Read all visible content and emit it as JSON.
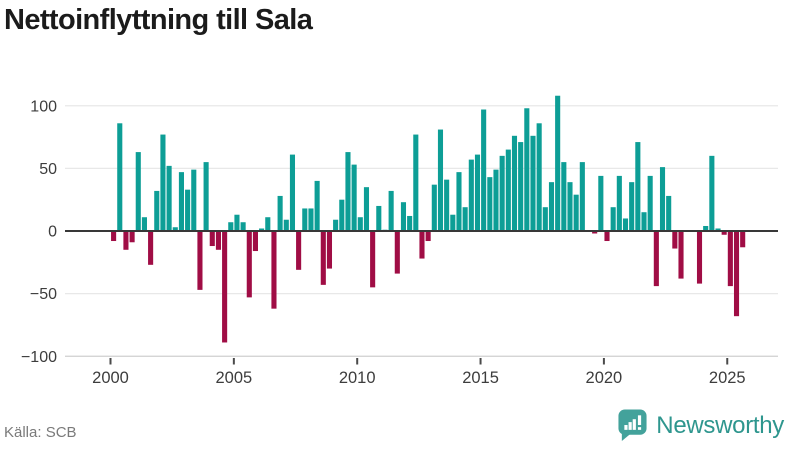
{
  "title": "Nettoinflyttning till Sala",
  "footer": {
    "source": "Källa: SCB",
    "brand": "Newsworthy"
  },
  "chart_data": {
    "type": "bar",
    "title": "Nettoinflyttning till Sala",
    "xlabel": "",
    "ylabel": "",
    "frequency": "quarterly",
    "start_period": "2000-Q1",
    "end_period": "2025-Q3",
    "x_tick_labels": [
      "2000",
      "2005",
      "2010",
      "2015",
      "2020",
      "2025"
    ],
    "y_ticks": [
      100,
      50,
      0,
      -50,
      -100
    ],
    "y_tick_labels": [
      "100",
      "50",
      "0",
      "−50",
      "−100"
    ],
    "ylim": [
      -114,
      114
    ],
    "grid": "horizontal",
    "legend": "none",
    "colors": {
      "positive": "#0d9e96",
      "negative": "#a00d45",
      "zero_line": "#383838",
      "gridline": "#e8e8e8",
      "axis_line": "#cfcfcf",
      "axis_text": "#3d3d3d"
    },
    "series": [
      {
        "name": "Nettoinflyttning",
        "values": [
          -8,
          86,
          -15,
          -9,
          63,
          11,
          -27,
          32,
          77,
          52,
          3,
          47,
          33,
          49,
          -47,
          55,
          -12,
          -15,
          -89,
          7,
          13,
          7,
          -53,
          -16,
          2,
          11,
          -62,
          28,
          9,
          61,
          -31,
          18,
          18,
          40,
          -43,
          -30,
          9,
          25,
          63,
          53,
          11,
          35,
          -45,
          20,
          1,
          32,
          -34,
          23,
          12,
          77,
          -22,
          -8,
          37,
          81,
          41,
          13,
          47,
          19,
          57,
          61,
          97,
          43,
          49,
          60,
          65,
          76,
          71,
          98,
          76,
          86,
          19,
          39,
          108,
          55,
          39,
          29,
          55,
          0,
          -2,
          44,
          -8,
          19,
          44,
          10,
          39,
          71,
          15,
          44,
          -44,
          51,
          28,
          -14,
          -38,
          0,
          0,
          -42,
          4,
          60,
          2,
          -3,
          -44,
          -68,
          -13
        ]
      }
    ]
  }
}
